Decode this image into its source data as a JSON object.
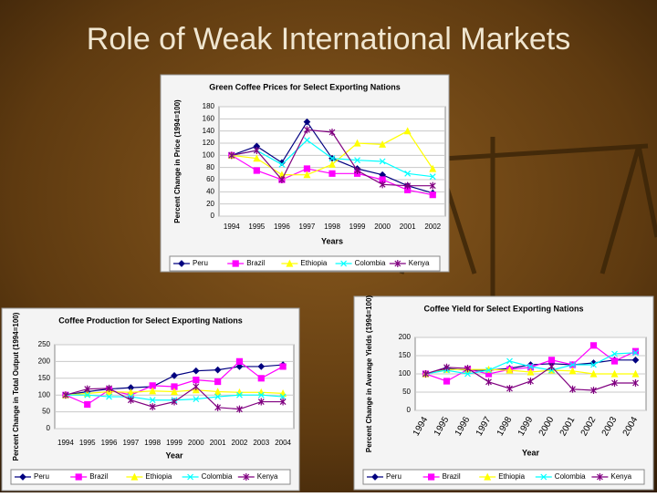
{
  "slide_title": "Role of Weak International Markets",
  "chart_data": [
    {
      "type": "line",
      "title": "Green Coffee Prices for Select Exporting Nations",
      "y_label": "Percent Change in Price (1994=100)",
      "x_label": "Years",
      "categories": [
        "1994",
        "1995",
        "1996",
        "1997",
        "1998",
        "1999",
        "2000",
        "2001",
        "2002"
      ],
      "ylim": [
        0,
        180
      ],
      "yticks": [
        0,
        20,
        40,
        60,
        80,
        100,
        120,
        140,
        160,
        180
      ],
      "grid": true,
      "legend": "bottom",
      "series": [
        {
          "name": "Peru",
          "color": "#000080",
          "values": [
            100,
            115,
            88,
            155,
            95,
            78,
            68,
            50,
            38
          ]
        },
        {
          "name": "Brazil",
          "color": "#ff00ff",
          "values": [
            100,
            75,
            60,
            78,
            70,
            70,
            60,
            43,
            35
          ]
        },
        {
          "name": "Ethiopia",
          "color": "#ffff00",
          "values": [
            100,
            95,
            68,
            68,
            85,
            120,
            118,
            140,
            78
          ]
        },
        {
          "name": "Colombia",
          "color": "#00ffff",
          "values": [
            100,
            108,
            85,
            125,
            95,
            92,
            90,
            70,
            65
          ]
        },
        {
          "name": "Kenya",
          "color": "#800080",
          "values": [
            100,
            108,
            60,
            142,
            138,
            75,
            52,
            50,
            50
          ]
        }
      ]
    },
    {
      "type": "line",
      "title": "Coffee Production for Select Exporting Nations",
      "y_label": "Percent Change in Total Output (1994=100)",
      "x_label": "Year",
      "categories": [
        "1994",
        "1995",
        "1996",
        "1997",
        "1998",
        "1999",
        "2000",
        "2001",
        "2002",
        "2003",
        "2004"
      ],
      "ylim": [
        0,
        250
      ],
      "yticks": [
        0,
        50,
        100,
        150,
        200,
        250
      ],
      "grid": true,
      "legend": "bottom",
      "series": [
        {
          "name": "Peru",
          "color": "#000080",
          "values": [
            100,
            110,
            118,
            122,
            125,
            158,
            172,
            175,
            185,
            185,
            190
          ]
        },
        {
          "name": "Brazil",
          "color": "#ff00ff",
          "values": [
            100,
            72,
            115,
            100,
            128,
            125,
            145,
            140,
            200,
            150,
            185
          ]
        },
        {
          "name": "Ethiopia",
          "color": "#ffff00",
          "values": [
            100,
            105,
            110,
            108,
            112,
            110,
            115,
            110,
            108,
            108,
            105
          ]
        },
        {
          "name": "Colombia",
          "color": "#00ffff",
          "values": [
            100,
            100,
            95,
            95,
            85,
            85,
            88,
            95,
            100,
            100,
            95
          ]
        },
        {
          "name": "Kenya",
          "color": "#800080",
          "values": [
            100,
            118,
            120,
            85,
            65,
            80,
            125,
            63,
            58,
            80,
            80
          ]
        }
      ]
    },
    {
      "type": "line",
      "title": "Coffee Yield for Select Exporting Nations",
      "y_label": "Percent Change in Average Yields (1994=100)",
      "x_label": "Year",
      "categories": [
        "1994",
        "1995",
        "1996",
        "1997",
        "1998",
        "1999",
        "2000",
        "2001",
        "2002",
        "2003",
        "2004"
      ],
      "ylim": [
        0,
        200
      ],
      "yticks": [
        0,
        50,
        100,
        150,
        200
      ],
      "grid": true,
      "legend": "bottom",
      "x_label_rotation": -60,
      "series": [
        {
          "name": "Peru",
          "color": "#000080",
          "values": [
            100,
            115,
            110,
            110,
            115,
            125,
            128,
            125,
            130,
            138,
            138
          ]
        },
        {
          "name": "Brazil",
          "color": "#ff00ff",
          "values": [
            100,
            80,
            112,
            100,
            112,
            118,
            138,
            125,
            178,
            135,
            162
          ]
        },
        {
          "name": "Ethiopia",
          "color": "#ffff00",
          "values": [
            100,
            112,
            112,
            112,
            110,
            105,
            110,
            108,
            100,
            100,
            100
          ]
        },
        {
          "name": "Colombia",
          "color": "#00ffff",
          "values": [
            100,
            110,
            100,
            110,
            135,
            120,
            110,
            125,
            125,
            155,
            158
          ]
        },
        {
          "name": "Kenya",
          "color": "#800080",
          "values": [
            100,
            118,
            115,
            78,
            60,
            80,
            120,
            58,
            55,
            75,
            75
          ]
        }
      ]
    }
  ]
}
